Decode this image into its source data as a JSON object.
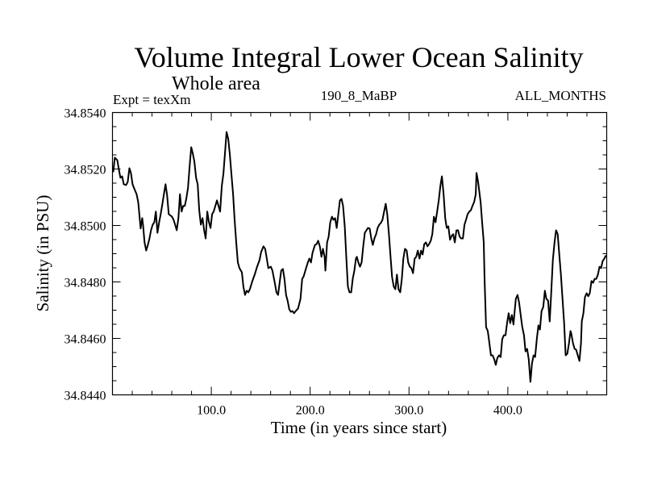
{
  "chart_data": {
    "type": "line",
    "title": "Volume Integral Lower Ocean Salinity",
    "subtitle": "Whole area",
    "annotations": {
      "left": "Expt = texXm",
      "center": "190_8_MaBP",
      "right": "ALL_MONTHS"
    },
    "xlabel": "Time (in years since start)",
    "ylabel": "Salinity (in PSU)",
    "xlim": [
      0,
      500
    ],
    "ylim": [
      34.844,
      34.854
    ],
    "xticks": [
      100,
      200,
      300,
      400
    ],
    "xtick_labels": [
      "100.0",
      "200.0",
      "300.0",
      "400.0"
    ],
    "x_minor_step": 20,
    "yticks": [
      34.844,
      34.846,
      34.848,
      34.85,
      34.852,
      34.854
    ],
    "ytick_labels": [
      "34.8440",
      "34.8460",
      "34.8480",
      "34.8500",
      "34.8520",
      "34.8540"
    ],
    "y_minor_step": 0.0005,
    "grid": false,
    "legend": "none",
    "line_color": "#000000",
    "series": [
      {
        "name": "Salinity",
        "x": [
          0.8,
          2.4,
          4.9,
          6.5,
          8.1,
          9.8,
          11.4,
          13.8,
          15.4,
          17.1,
          18.7,
          20.3,
          22.0,
          24.4,
          26.0,
          26.8,
          28.5,
          30.1,
          30.9,
          32.5,
          34.1,
          35.8,
          37.4,
          39.0,
          40.7,
          42.3,
          43.9,
          45.5,
          47.2,
          48.8,
          50.4,
          52.0,
          53.7,
          55.3,
          56.9,
          60.2,
          61.8,
          63.4,
          65.0,
          66.7,
          68.3,
          69.9,
          71.5,
          73.2,
          74.8,
          76.4,
          78.0,
          79.7,
          81.3,
          82.9,
          84.6,
          86.2,
          87.8,
          89.4,
          91.1,
          92.7,
          94.3,
          95.9,
          97.6,
          99.2,
          100.8,
          102.4,
          104.1,
          105.7,
          108.9,
          110.6,
          112.2,
          113.8,
          115.4,
          117.1,
          118.7,
          120.3,
          122.0,
          123.6,
          125.2,
          126.8,
          128.5,
          130.9,
          132.5,
          134.1,
          135.8,
          137.4,
          139.0,
          141.5,
          143.9,
          146.3,
          148.8,
          150.4,
          152.8,
          154.5,
          156.1,
          157.7,
          160.2,
          161.8,
          164.2,
          165.9,
          167.5,
          169.1,
          170.7,
          172.4,
          174.0,
          175.6,
          177.2,
          178.9,
          180.5,
          182.1,
          183.7,
          185.4,
          187.8,
          190.2,
          191.9,
          193.5,
          195.1,
          197.6,
          199.2,
          200.8,
          202.4,
          204.9,
          206.5,
          208.1,
          209.8,
          211.4,
          213.0,
          214.6,
          215.4,
          217.1,
          218.7,
          220.3,
          222.0,
          223.6,
          225.2,
          226.8,
          228.5,
          230.1,
          231.7,
          233.3,
          235.0,
          236.6,
          238.2,
          239.8,
          241.5,
          243.1,
          244.7,
          246.3,
          247.2,
          248.8,
          250.4,
          252.0,
          253.7,
          255.3,
          256.9,
          258.5,
          260.2,
          261.8,
          263.4,
          265.0,
          266.7,
          268.3,
          269.9,
          271.5,
          273.2,
          274.8,
          276.4,
          278.0,
          279.7,
          281.3,
          282.9,
          284.6,
          286.2,
          287.8,
          289.4,
          291.1,
          292.7,
          294.3,
          295.9,
          297.6,
          299.2,
          300.8,
          302.4,
          304.1,
          305.7,
          307.3,
          308.9,
          310.6,
          312.2,
          313.8,
          315.4,
          317.1,
          318.7,
          320.3,
          322.0,
          323.6,
          325.2,
          326.8,
          328.5,
          330.1,
          331.7,
          333.3,
          335.0,
          336.6,
          338.2,
          339.8,
          341.5,
          343.1,
          344.7,
          346.3,
          348.0,
          349.6,
          351.2,
          352.8,
          354.5,
          356.1,
          357.7,
          359.3,
          361.0,
          362.6,
          364.2,
          365.9,
          367.5,
          368.3,
          369.9,
          372.4,
          374.0,
          375.6,
          376.4,
          378.0,
          379.7,
          381.3,
          382.9,
          384.6,
          386.2,
          387.8,
          389.4,
          391.1,
          392.7,
          394.3,
          395.9,
          397.6,
          399.2,
          400.8,
          402.4,
          404.1,
          405.7,
          406.5,
          408.1,
          409.8,
          411.4,
          413.0,
          414.6,
          416.3,
          417.9,
          419.5,
          421.1,
          422.8,
          424.4,
          426.0,
          427.6,
          429.3,
          430.9,
          432.5,
          434.1,
          435.8,
          437.4,
          439.0,
          440.7,
          442.3,
          443.9,
          445.5,
          447.2,
          448.8,
          450.4,
          452.0,
          453.7,
          455.3,
          456.9,
          458.5,
          460.2,
          461.8,
          463.4,
          464.2,
          465.9,
          467.5,
          469.1,
          470.7,
          472.4,
          474.0,
          474.8,
          476.4,
          478.0,
          479.7,
          481.3,
          482.9,
          484.6,
          486.2,
          487.8,
          489.4,
          491.1,
          492.7,
          494.3,
          495.9,
          497.6,
          499.2
        ],
        "y": [
          34.85189,
          34.8524,
          34.85231,
          34.85197,
          34.85169,
          34.85174,
          34.85146,
          34.85143,
          34.85154,
          34.85203,
          34.85186,
          34.85146,
          34.85131,
          34.85111,
          34.85083,
          34.85054,
          34.84989,
          34.85026,
          34.85003,
          34.8494,
          34.84911,
          34.84931,
          34.84954,
          34.84983,
          34.85003,
          34.85011,
          34.85049,
          34.84974,
          34.85011,
          34.8504,
          34.85074,
          34.85111,
          34.85146,
          34.85106,
          34.8504,
          34.85031,
          34.8502,
          34.85003,
          34.84983,
          34.85026,
          34.85111,
          34.85049,
          34.85069,
          34.85069,
          34.85097,
          34.85134,
          34.85206,
          34.85277,
          34.85254,
          34.85226,
          34.85169,
          34.85146,
          34.85054,
          34.85003,
          34.85026,
          34.84983,
          34.84954,
          34.85049,
          34.85011,
          34.84991,
          34.8504,
          34.85049,
          34.85069,
          34.85089,
          34.85049,
          34.8514,
          34.85183,
          34.85254,
          34.85331,
          34.85306,
          34.85254,
          34.85183,
          34.85111,
          34.8502,
          34.8494,
          34.84869,
          34.84849,
          34.84834,
          34.84783,
          34.84754,
          34.84769,
          34.84763,
          34.84774,
          34.84803,
          34.84826,
          34.84854,
          34.84877,
          34.84906,
          34.84926,
          34.84917,
          34.84883,
          34.84849,
          34.84854,
          34.8484,
          34.84797,
          34.84763,
          34.84754,
          34.84797,
          34.8484,
          34.84846,
          34.84811,
          34.84754,
          34.84734,
          34.84703,
          34.84694,
          34.84697,
          34.84689,
          34.84697,
          34.84706,
          34.8474,
          34.84811,
          34.8482,
          34.8484,
          34.84869,
          34.84883,
          34.84869,
          34.84903,
          34.84931,
          34.84934,
          34.84946,
          34.84926,
          34.84889,
          34.84917,
          34.84889,
          34.8484,
          34.8494,
          34.8496,
          34.85011,
          34.85031,
          34.8502,
          34.85026,
          34.84991,
          34.8504,
          34.85089,
          34.85094,
          34.85069,
          34.84997,
          34.84883,
          34.84783,
          34.84763,
          34.84763,
          34.84811,
          34.8484,
          34.84883,
          34.84889,
          34.84869,
          34.84854,
          34.84869,
          34.84926,
          34.84974,
          34.84983,
          34.84991,
          34.84989,
          34.84954,
          34.84931,
          34.84954,
          34.84969,
          34.84991,
          34.85003,
          34.85009,
          34.8502,
          34.85049,
          34.85077,
          34.8504,
          34.84969,
          34.84889,
          34.84817,
          34.84783,
          34.84774,
          34.84826,
          34.84774,
          34.84763,
          34.84811,
          34.84883,
          34.84917,
          34.84911,
          34.84869,
          34.84854,
          34.84849,
          34.84831,
          34.84883,
          34.84889,
          34.84911,
          34.84883,
          34.84911,
          34.84897,
          34.84934,
          34.8494,
          34.84926,
          34.84934,
          34.84946,
          34.84969,
          34.85031,
          34.85011,
          34.85049,
          34.85089,
          34.8514,
          34.85174,
          34.85111,
          34.85026,
          34.84991,
          34.84997,
          34.84949,
          34.84963,
          34.84969,
          34.8494,
          34.84983,
          34.84983,
          34.8496,
          34.84954,
          34.84954,
          34.85003,
          34.8502,
          34.8504,
          34.85049,
          34.85054,
          34.85069,
          34.85083,
          34.85111,
          34.85186,
          34.85154,
          34.85083,
          34.85011,
          34.8494,
          34.84811,
          34.8464,
          34.84626,
          34.84583,
          34.8454,
          34.8454,
          34.84526,
          34.84506,
          34.84531,
          34.8454,
          34.84534,
          34.84597,
          34.84611,
          34.84611,
          34.84654,
          34.84689,
          34.84654,
          34.84683,
          34.84649,
          34.84683,
          34.8474,
          34.84754,
          34.84726,
          34.84683,
          34.8464,
          34.84611,
          34.84554,
          34.84563,
          34.84526,
          34.84446,
          34.84511,
          34.8454,
          34.84534,
          34.84597,
          34.84646,
          34.84631,
          34.84697,
          34.84711,
          34.84769,
          34.8474,
          34.84734,
          34.8466,
          34.84763,
          34.84877,
          34.8494,
          34.84983,
          34.84969,
          34.84897,
          34.84826,
          34.8474,
          34.84654,
          34.8454,
          34.84546,
          34.84583,
          34.84626,
          34.84617,
          34.84583,
          34.84563,
          34.8456,
          34.8454,
          34.8452,
          34.84583,
          34.8466,
          34.84689,
          34.84746,
          34.8476,
          34.84749,
          34.8476,
          34.84803,
          34.84797,
          34.84811,
          34.84811,
          34.84826,
          34.84854,
          34.84849,
          34.84874,
          34.84883,
          34.84894
        ]
      }
    ]
  }
}
